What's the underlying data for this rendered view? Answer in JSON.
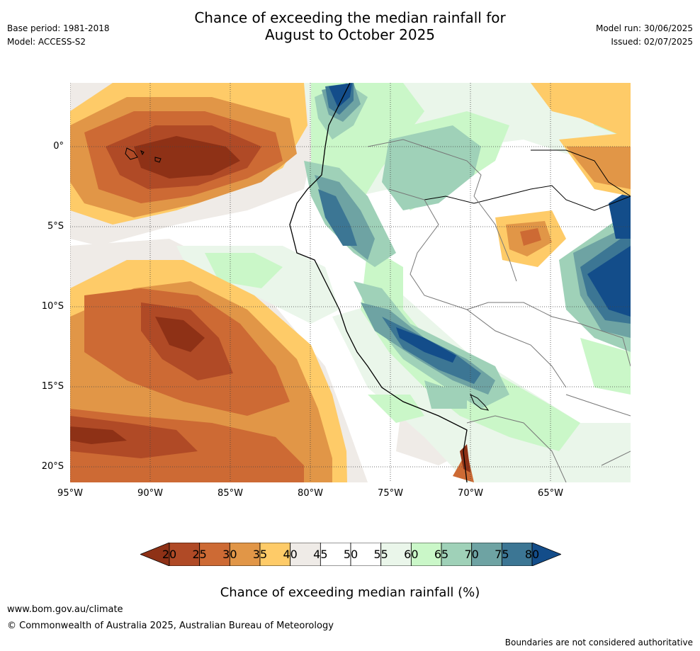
{
  "header": {
    "base_period": "Base period: 1981-2018",
    "model": "Model: ACCESS-S2",
    "title_line1": "Chance of exceeding the median rainfall for",
    "title_line2": "August to October 2025",
    "model_run": "Model run: 30/06/2025",
    "issued": "Issued: 02/07/2025"
  },
  "map": {
    "lon_labels": [
      "95°W",
      "90°W",
      "85°W",
      "80°W",
      "75°W",
      "70°W",
      "65°W"
    ],
    "lat_labels": [
      "0°",
      "5°S",
      "10°S",
      "15°S",
      "20°S"
    ]
  },
  "colorbar": {
    "ticks": [
      "20",
      "25",
      "30",
      "35",
      "40",
      "45",
      "50",
      "55",
      "60",
      "65",
      "70",
      "75",
      "80"
    ],
    "colors": [
      "#8e3116",
      "#b04a26",
      "#cd6a34",
      "#e19647",
      "#fecb68",
      "#efebe7",
      "#ffffff",
      "#ffffff",
      "#eaf6ea",
      "#caf7c8",
      "#9fd1b8",
      "#6ea3a3",
      "#3c7694",
      "#134d8a"
    ],
    "title": "Chance of exceeding median rainfall (%)"
  },
  "footer": {
    "website": "www.bom.gov.au/climate",
    "copyright": "© Commonwealth of Australia 2025, Australian Bureau of Meteorology",
    "disclaimer": "Boundaries are not considered authoritative"
  }
}
